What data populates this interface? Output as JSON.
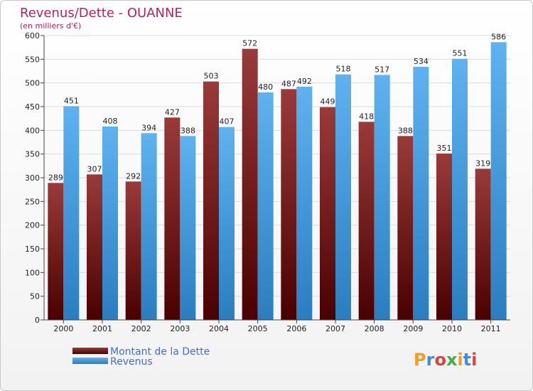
{
  "chart_data": {
    "type": "bar",
    "title": "Revenus/Dette - OUANNE",
    "subtitle": "(en milliers d'€)",
    "categories": [
      "2000",
      "2001",
      "2002",
      "2003",
      "2004",
      "2005",
      "2006",
      "2007",
      "2008",
      "2009",
      "2010",
      "2011"
    ],
    "series": [
      {
        "name": "Montant de la Dette",
        "color": "#7a1a1a",
        "values": [
          289,
          307,
          292,
          427,
          503,
          572,
          487,
          449,
          418,
          388,
          351,
          319
        ]
      },
      {
        "name": "Revenus",
        "color": "#4aa3e8",
        "values": [
          451,
          408,
          394,
          388,
          407,
          480,
          492,
          518,
          517,
          534,
          551,
          586
        ]
      }
    ],
    "ylim": [
      0,
      600
    ],
    "yticks": [
      0,
      50,
      100,
      150,
      200,
      250,
      300,
      350,
      400,
      450,
      500,
      550,
      600
    ],
    "grid": true,
    "legend_position": "bottom-left"
  },
  "brand": {
    "logo_text": "Proxiti"
  }
}
